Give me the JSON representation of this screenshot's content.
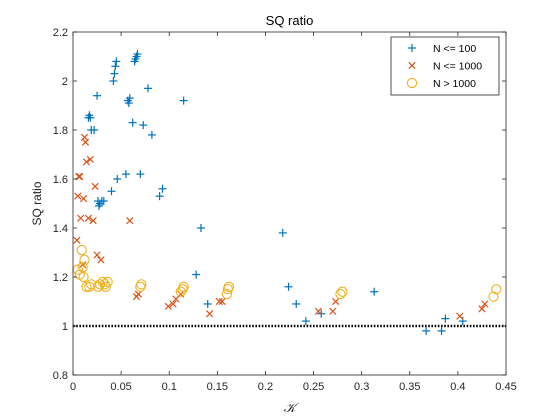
{
  "chart_data": {
    "type": "scatter",
    "title": "SQ ratio",
    "xlabel": "𝒦",
    "ylabel": "SQ ratio",
    "xlim": [
      0,
      0.45
    ],
    "ylim": [
      0.8,
      2.2
    ],
    "xticks": [
      0,
      0.05,
      0.1,
      0.15,
      0.2,
      0.25,
      0.3,
      0.35,
      0.4,
      0.45
    ],
    "xtick_labels": [
      "0",
      "0.05",
      "0.1",
      "0.15",
      "0.2",
      "0.25",
      "0.3",
      "0.35",
      "0.4",
      "0.45"
    ],
    "yticks": [
      0.8,
      1,
      1.2,
      1.4,
      1.6,
      1.8,
      2,
      2.2
    ],
    "ytick_labels": [
      "0.8",
      "1",
      "1.2",
      "1.4",
      "1.6",
      "1.8",
      "2",
      "2.2"
    ],
    "grid": false,
    "legend_position": "top-right",
    "reference_line": {
      "y": 1.0,
      "style": "dotted",
      "color": "#000000"
    },
    "series": [
      {
        "name": "N <= 100",
        "marker": "plus",
        "color": "#0072BD",
        "points": [
          [
            0.016,
            1.85
          ],
          [
            0.017,
            1.86
          ],
          [
            0.018,
            1.85
          ],
          [
            0.019,
            1.8
          ],
          [
            0.022,
            1.8
          ],
          [
            0.025,
            1.94
          ],
          [
            0.026,
            1.51
          ],
          [
            0.027,
            1.49
          ],
          [
            0.028,
            1.5
          ],
          [
            0.03,
            1.51
          ],
          [
            0.032,
            1.51
          ],
          [
            0.04,
            1.55
          ],
          [
            0.042,
            2.0
          ],
          [
            0.043,
            2.03
          ],
          [
            0.044,
            2.06
          ],
          [
            0.045,
            2.08
          ],
          [
            0.046,
            1.6
          ],
          [
            0.055,
            1.62
          ],
          [
            0.057,
            1.92
          ],
          [
            0.058,
            1.91
          ],
          [
            0.059,
            1.93
          ],
          [
            0.062,
            1.83
          ],
          [
            0.064,
            2.08
          ],
          [
            0.065,
            2.09
          ],
          [
            0.066,
            2.1
          ],
          [
            0.067,
            2.11
          ],
          [
            0.07,
            1.62
          ],
          [
            0.073,
            1.82
          ],
          [
            0.078,
            1.97
          ],
          [
            0.082,
            1.78
          ],
          [
            0.09,
            1.53
          ],
          [
            0.093,
            1.56
          ],
          [
            0.115,
            1.92
          ],
          [
            0.128,
            1.21
          ],
          [
            0.133,
            1.4
          ],
          [
            0.14,
            1.09
          ],
          [
            0.218,
            1.38
          ],
          [
            0.224,
            1.16
          ],
          [
            0.232,
            1.09
          ],
          [
            0.242,
            1.02
          ],
          [
            0.258,
            1.05
          ],
          [
            0.313,
            1.14
          ],
          [
            0.367,
            0.98
          ],
          [
            0.383,
            0.98
          ],
          [
            0.387,
            1.03
          ],
          [
            0.405,
            1.02
          ]
        ]
      },
      {
        "name": "N <= 1000",
        "marker": "cross",
        "color": "#D95319",
        "points": [
          [
            0.004,
            1.35
          ],
          [
            0.005,
            1.53
          ],
          [
            0.006,
            1.61
          ],
          [
            0.007,
            1.61
          ],
          [
            0.008,
            1.44
          ],
          [
            0.01,
            1.25
          ],
          [
            0.011,
            1.52
          ],
          [
            0.012,
            1.77
          ],
          [
            0.013,
            1.75
          ],
          [
            0.014,
            1.67
          ],
          [
            0.016,
            1.44
          ],
          [
            0.018,
            1.68
          ],
          [
            0.021,
            1.43
          ],
          [
            0.023,
            1.57
          ],
          [
            0.025,
            1.29
          ],
          [
            0.029,
            1.27
          ],
          [
            0.059,
            1.43
          ],
          [
            0.066,
            1.12
          ],
          [
            0.068,
            1.13
          ],
          [
            0.099,
            1.08
          ],
          [
            0.104,
            1.09
          ],
          [
            0.107,
            1.11
          ],
          [
            0.112,
            1.13
          ],
          [
            0.142,
            1.05
          ],
          [
            0.152,
            1.1
          ],
          [
            0.155,
            1.1
          ],
          [
            0.255,
            1.06
          ],
          [
            0.27,
            1.06
          ],
          [
            0.273,
            1.1
          ],
          [
            0.402,
            1.04
          ],
          [
            0.425,
            1.07
          ],
          [
            0.428,
            1.09
          ]
        ]
      },
      {
        "name": "N > 1000",
        "marker": "circle",
        "color": "#EDB120",
        "points": [
          [
            0.005,
            1.23
          ],
          [
            0.007,
            1.21
          ],
          [
            0.009,
            1.31
          ],
          [
            0.01,
            1.24
          ],
          [
            0.011,
            1.2
          ],
          [
            0.012,
            1.27
          ],
          [
            0.014,
            1.16
          ],
          [
            0.017,
            1.16
          ],
          [
            0.019,
            1.17
          ],
          [
            0.026,
            1.16
          ],
          [
            0.028,
            1.17
          ],
          [
            0.031,
            1.18
          ],
          [
            0.033,
            1.17
          ],
          [
            0.034,
            1.16
          ],
          [
            0.036,
            1.18
          ],
          [
            0.07,
            1.16
          ],
          [
            0.071,
            1.17
          ],
          [
            0.112,
            1.14
          ],
          [
            0.114,
            1.15
          ],
          [
            0.115,
            1.16
          ],
          [
            0.16,
            1.13
          ],
          [
            0.161,
            1.15
          ],
          [
            0.162,
            1.16
          ],
          [
            0.278,
            1.13
          ],
          [
            0.28,
            1.14
          ],
          [
            0.437,
            1.12
          ],
          [
            0.44,
            1.15
          ]
        ]
      }
    ]
  }
}
